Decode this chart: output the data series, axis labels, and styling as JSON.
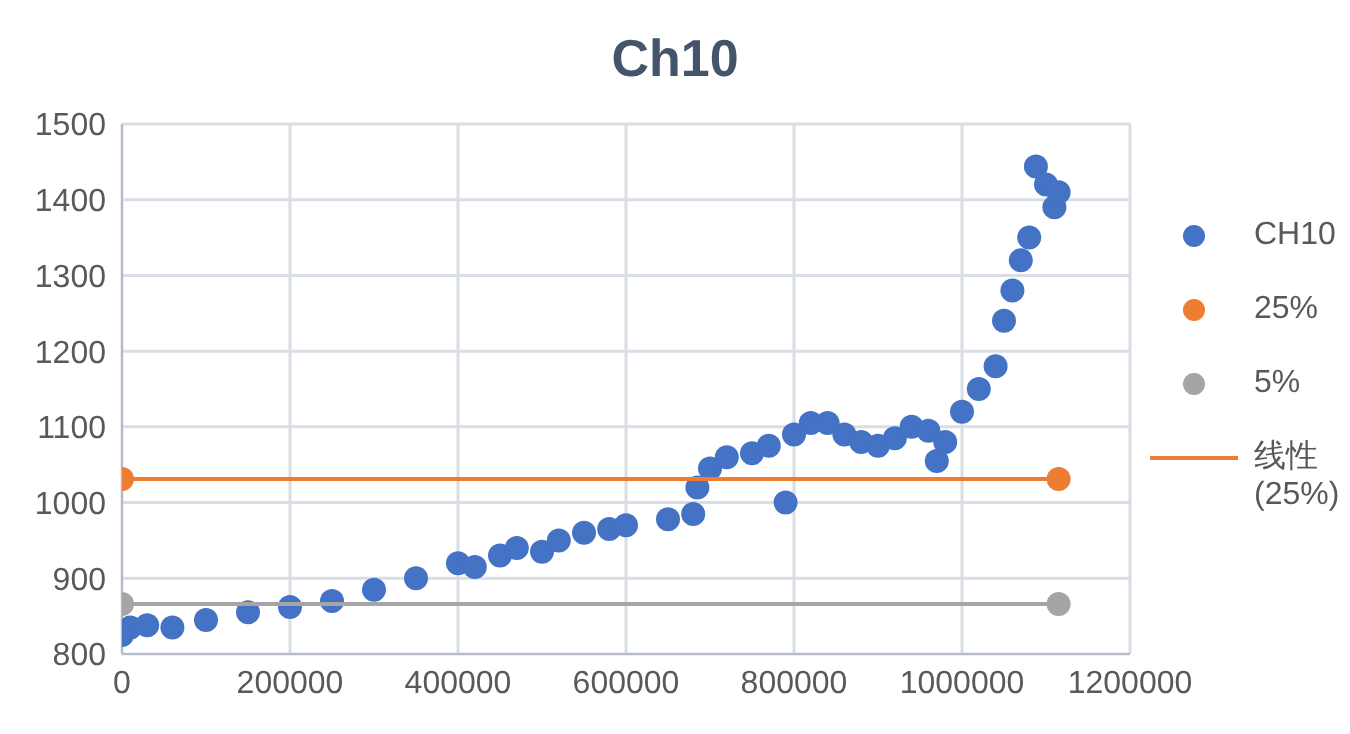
{
  "chart_data": {
    "type": "scatter",
    "title": "Ch10",
    "xlim": [
      0,
      1200000
    ],
    "xticks": [
      0,
      200000,
      400000,
      600000,
      800000,
      1000000,
      1200000
    ],
    "ylim": [
      800,
      1500
    ],
    "yticks": [
      800,
      900,
      1000,
      1100,
      1200,
      1300,
      1400,
      1500
    ],
    "grid": true,
    "legend": "right",
    "marker": "circle",
    "series": [
      {
        "name": "CH10",
        "color": "#4472c4",
        "x": [
          0,
          10000,
          30000,
          60000,
          100000,
          150000,
          200000,
          250000,
          300000,
          350000,
          400000,
          420000,
          450000,
          470000,
          500000,
          520000,
          550000,
          580000,
          600000,
          650000,
          680000,
          685000,
          700000,
          720000,
          750000,
          770000,
          790000,
          800000,
          820000,
          840000,
          860000,
          880000,
          900000,
          920000,
          940000,
          960000,
          970000,
          980000,
          1000000,
          1020000,
          1040000,
          1050000,
          1060000,
          1070000,
          1080000,
          1088000,
          1100000,
          1110000,
          1115000
        ],
        "values": [
          825,
          835,
          838,
          835,
          845,
          855,
          862,
          870,
          885,
          900,
          920,
          915,
          930,
          940,
          935,
          950,
          960,
          965,
          970,
          978,
          985,
          1020,
          1045,
          1060,
          1065,
          1075,
          1000,
          1090,
          1105,
          1105,
          1090,
          1080,
          1075,
          1085,
          1100,
          1095,
          1055,
          1080,
          1120,
          1150,
          1180,
          1240,
          1280,
          1320,
          1350,
          1444,
          1420,
          1390,
          1410
        ]
      },
      {
        "name": "25%",
        "color": "#ed7d31",
        "x": [
          0,
          1115000
        ],
        "values": [
          1031,
          1031
        ]
      },
      {
        "name": "5%",
        "type": "line",
        "color": "#a5a5a5",
        "x": [
          0,
          1115000
        ],
        "values": [
          866,
          866
        ]
      },
      {
        "name": "线性 (25%)",
        "type": "line",
        "marker": "none",
        "color": "#ed7d31",
        "x": [
          0,
          1115000
        ],
        "values": [
          1031,
          1031
        ]
      }
    ]
  }
}
